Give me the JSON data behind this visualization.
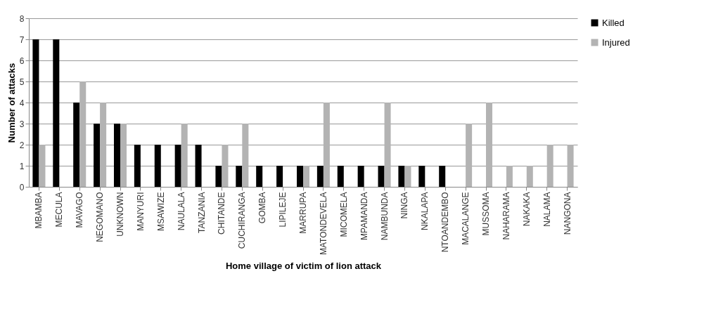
{
  "chart_data": {
    "type": "bar",
    "xlabel": "Home village of victim of lion attack",
    "ylabel": "Number of attacks",
    "categories": [
      "MBAMBA",
      "MECULA",
      "MAVAGO",
      "NEGOMANO",
      "UNKNOWN",
      "MANYURI",
      "MSAWIZE",
      "NAULALA",
      "TANZANIA",
      "CHITANDE",
      "CUCHIRANGA",
      "GOMBA",
      "LIPILEJE",
      "MARRUPA",
      "MATONDEVELA",
      "MICOMELA",
      "MPAMANDA",
      "NAMBUNDA",
      "NINGA",
      "NKALAPA",
      "NTOANDEMBO",
      "MACALANGE",
      "MUSSOMA",
      "NAHARAMA",
      "NAKAKA",
      "NALAMA",
      "NANGONA"
    ],
    "series": [
      {
        "name": "Killed",
        "color": "#000000",
        "values": [
          7,
          7,
          4,
          3,
          3,
          2,
          2,
          2,
          2,
          1,
          1,
          1,
          1,
          1,
          1,
          1,
          1,
          1,
          1,
          1,
          1,
          0,
          0,
          0,
          0,
          0,
          0
        ]
      },
      {
        "name": "Injured",
        "color": "#b3b3b3",
        "values": [
          2,
          0,
          5,
          4,
          3,
          0,
          0,
          3,
          0,
          2,
          3,
          0,
          0,
          1,
          4,
          0,
          0,
          4,
          1,
          0,
          0,
          3,
          4,
          1,
          1,
          2,
          2
        ]
      }
    ],
    "ylim": [
      0,
      8
    ],
    "yticks": [
      0,
      1,
      2,
      3,
      4,
      5,
      6,
      7,
      8
    ],
    "grid": "y",
    "legend": "right"
  }
}
